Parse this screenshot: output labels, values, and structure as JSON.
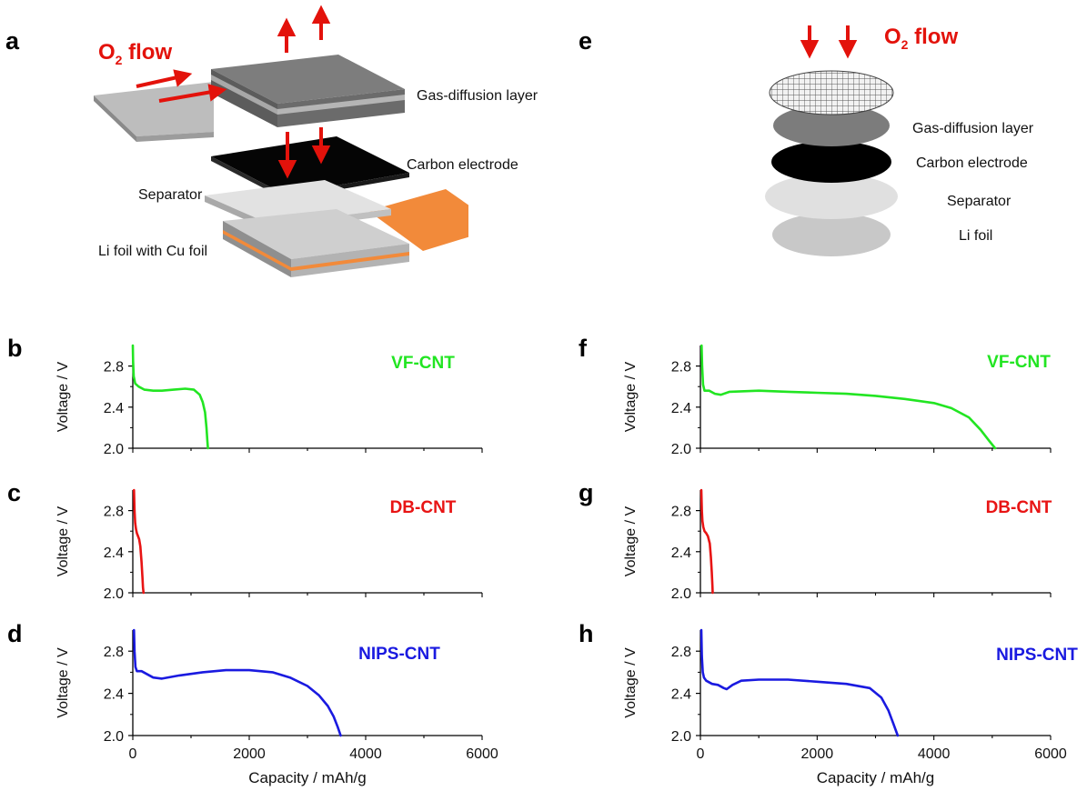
{
  "diagram_a": {
    "letter": "a",
    "o2_label_main": "O",
    "o2_label_sub": "2",
    "o2_label_rest": " flow",
    "labels": {
      "gdl": "Gas-diffusion layer",
      "carbon": "Carbon electrode",
      "separator": "Separator",
      "li_foil": "Li foil with Cu foil"
    }
  },
  "diagram_e": {
    "letter": "e",
    "o2_label_main": "O",
    "o2_label_sub": "2",
    "o2_label_rest": " flow",
    "labels": {
      "gdl": "Gas-diffusion layer",
      "carbon": "Carbon electrode",
      "separator": "Separator",
      "li_foil": "Li foil"
    }
  },
  "colors": {
    "vf": "#22e522",
    "db": "#e81414",
    "nips": "#1a1ae0",
    "arrow": "#e3120b",
    "cu": "#f28a3a"
  },
  "chart_data": [
    {
      "letter": "b",
      "type": "line",
      "name": "VF-CNT",
      "color": "#22e522",
      "ylabel": "Voltage / V",
      "xlabel": "",
      "xlim": [
        0,
        6000
      ],
      "ylim": [
        2.0,
        3.0
      ],
      "yticks": [
        "2.0",
        "2.4",
        "2.8"
      ],
      "xticks": [],
      "x": [
        0,
        5,
        15,
        40,
        100,
        200,
        350,
        500,
        700,
        900,
        1050,
        1150,
        1200,
        1240,
        1265,
        1280,
        1290
      ],
      "y": [
        3.0,
        2.85,
        2.7,
        2.63,
        2.6,
        2.57,
        2.56,
        2.56,
        2.57,
        2.58,
        2.57,
        2.52,
        2.45,
        2.35,
        2.2,
        2.08,
        2.0
      ]
    },
    {
      "letter": "c",
      "type": "line",
      "name": "DB-CNT",
      "color": "#e81414",
      "ylabel": "Voltage / V",
      "xlabel": "",
      "xlim": [
        0,
        6000
      ],
      "ylim": [
        2.0,
        3.0
      ],
      "yticks": [
        "2.0",
        "2.4",
        "2.8"
      ],
      "xticks": [],
      "x": [
        20,
        30,
        40,
        55,
        70,
        90,
        110,
        130,
        150,
        165,
        175,
        185
      ],
      "y": [
        3.0,
        2.8,
        2.68,
        2.62,
        2.58,
        2.55,
        2.52,
        2.45,
        2.3,
        2.15,
        2.05,
        2.0
      ]
    },
    {
      "letter": "d",
      "type": "line",
      "name": "NIPS-CNT",
      "color": "#1a1ae0",
      "ylabel": "Voltage / V",
      "xlabel": "Capacity / mAh/g",
      "xlim": [
        0,
        6000
      ],
      "ylim": [
        2.0,
        3.0
      ],
      "yticks": [
        "2.0",
        "2.4",
        "2.8"
      ],
      "xticks": [
        "0",
        "2000",
        "4000",
        "6000"
      ],
      "x": [
        20,
        30,
        45,
        70,
        150,
        250,
        350,
        500,
        800,
        1200,
        1600,
        2000,
        2400,
        2700,
        3000,
        3200,
        3350,
        3450,
        3520,
        3570
      ],
      "y": [
        3.0,
        2.8,
        2.65,
        2.61,
        2.61,
        2.58,
        2.55,
        2.54,
        2.57,
        2.6,
        2.62,
        2.62,
        2.6,
        2.55,
        2.47,
        2.38,
        2.28,
        2.18,
        2.08,
        2.0
      ]
    },
    {
      "letter": "f",
      "type": "line",
      "name": "VF-CNT",
      "color": "#22e522",
      "ylabel": "Voltage / V",
      "xlabel": "",
      "xlim": [
        0,
        6000
      ],
      "ylim": [
        2.0,
        3.0
      ],
      "yticks": [
        "2.0",
        "2.4",
        "2.8"
      ],
      "xticks": [],
      "x": [
        20,
        30,
        45,
        70,
        150,
        250,
        350,
        500,
        1000,
        1500,
        2000,
        2500,
        3000,
        3500,
        4000,
        4300,
        4600,
        4800,
        4950,
        5050
      ],
      "y": [
        3.0,
        2.8,
        2.62,
        2.56,
        2.56,
        2.53,
        2.52,
        2.55,
        2.56,
        2.55,
        2.54,
        2.53,
        2.51,
        2.48,
        2.44,
        2.39,
        2.3,
        2.18,
        2.07,
        2.0
      ]
    },
    {
      "letter": "g",
      "type": "line",
      "name": "DB-CNT",
      "color": "#e81414",
      "ylabel": "Voltage / V",
      "xlabel": "",
      "xlim": [
        0,
        6000
      ],
      "ylim": [
        2.0,
        3.0
      ],
      "yticks": [
        "2.0",
        "2.4",
        "2.8"
      ],
      "xticks": [],
      "x": [
        15,
        25,
        35,
        50,
        70,
        100,
        130,
        160,
        180,
        195,
        205,
        210
      ],
      "y": [
        3.0,
        2.8,
        2.7,
        2.64,
        2.6,
        2.58,
        2.55,
        2.48,
        2.35,
        2.2,
        2.07,
        2.0
      ]
    },
    {
      "letter": "h",
      "type": "line",
      "name": "NIPS-CNT",
      "color": "#1a1ae0",
      "ylabel": "Voltage / V",
      "xlabel": "Capacity / mAh/g",
      "xlim": [
        0,
        6000
      ],
      "ylim": [
        2.0,
        3.0
      ],
      "yticks": [
        "2.0",
        "2.4",
        "2.8"
      ],
      "xticks": [
        "0",
        "2000",
        "4000",
        "6000"
      ],
      "x": [
        15,
        25,
        40,
        60,
        100,
        200,
        300,
        400,
        450,
        550,
        700,
        1000,
        1500,
        2000,
        2500,
        2900,
        3100,
        3220,
        3300,
        3380
      ],
      "y": [
        3.0,
        2.75,
        2.6,
        2.55,
        2.52,
        2.49,
        2.48,
        2.45,
        2.44,
        2.48,
        2.52,
        2.53,
        2.53,
        2.51,
        2.49,
        2.45,
        2.36,
        2.24,
        2.12,
        2.0
      ]
    }
  ]
}
